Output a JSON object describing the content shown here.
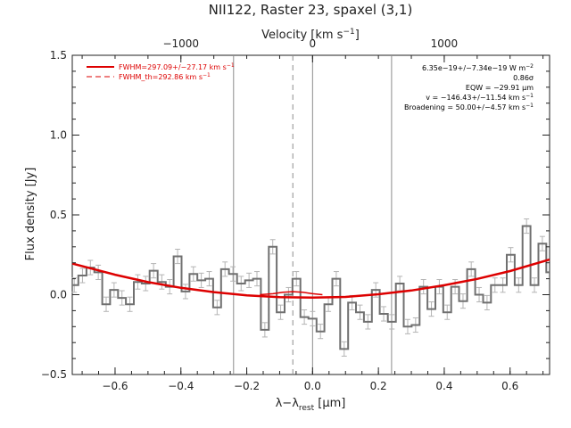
{
  "chart_data": {
    "type": "line",
    "title": "NII122, Raster 23, spaxel (3,1)",
    "xlabel": "λ−λ",
    "xlabel_sub": "rest",
    "xlabel_unit": " [μm]",
    "ylabel": "Flux density [Jy]",
    "top_axis_label": "Velocity [km s",
    "top_axis_label_sup": "−1",
    "top_axis_label_end": "]",
    "xlim": [
      -0.73,
      0.72
    ],
    "ylim": [
      -0.5,
      1.5
    ],
    "x_ticks": [
      -0.6,
      -0.4,
      -0.2,
      0.0,
      0.2,
      0.4,
      0.6
    ],
    "x_tick_labels": [
      "−0.6",
      "−0.4",
      "−0.2",
      "0.0",
      "0.2",
      "0.4",
      "0.6"
    ],
    "y_ticks": [
      -0.5,
      0.0,
      0.5,
      1.0,
      1.5
    ],
    "y_tick_labels": [
      "−0.5",
      "0.0",
      "0.5",
      "1.0",
      "1.5"
    ],
    "top_ticks_x": [
      -0.4,
      0.0,
      0.4
    ],
    "top_tick_labels": [
      "−1000",
      "0",
      "1000"
    ],
    "vertical_lines": [
      {
        "x": -0.24,
        "style": "solid"
      },
      {
        "x": 0.0,
        "style": "solid"
      },
      {
        "x": 0.24,
        "style": "solid"
      },
      {
        "x": -0.06,
        "style": "dashed"
      }
    ],
    "legend": {
      "placement": "top-left",
      "entries": [
        {
          "label": "FWHM=297.09+/−27.17 km s",
          "sup": "−1",
          "style": "solid",
          "color": "#dd0000"
        },
        {
          "label": "FWHM_th=292.86 km s",
          "sup": "−1",
          "style": "dashed",
          "color": "#dd0000"
        }
      ]
    },
    "annotations": [
      {
        "text": "6.35e−19+/−7.34e−19 W m",
        "sup": "−2"
      },
      {
        "text": "0.86σ",
        "sup": ""
      },
      {
        "text": "EQW = −29.91 μm",
        "sup": ""
      },
      {
        "text": "v = −146.43+/−11.54 km s",
        "sup": "−1"
      },
      {
        "text": "Broadening = 50.00+/−4.57 km s",
        "sup": "−1"
      }
    ],
    "series": [
      {
        "kind": "histogram",
        "color": "#707070",
        "x": [
          -0.724,
          -0.699,
          -0.675,
          -0.651,
          -0.627,
          -0.603,
          -0.579,
          -0.555,
          -0.531,
          -0.507,
          -0.483,
          -0.458,
          -0.434,
          -0.41,
          -0.386,
          -0.362,
          -0.338,
          -0.314,
          -0.29,
          -0.266,
          -0.242,
          -0.217,
          -0.193,
          -0.169,
          -0.145,
          -0.121,
          -0.097,
          -0.073,
          -0.049,
          -0.025,
          0.0,
          0.024,
          0.048,
          0.072,
          0.096,
          0.12,
          0.144,
          0.168,
          0.192,
          0.216,
          0.241,
          0.265,
          0.289,
          0.313,
          0.337,
          0.361,
          0.385,
          0.409,
          0.433,
          0.457,
          0.482,
          0.506,
          0.53,
          0.554,
          0.578,
          0.602,
          0.626,
          0.65,
          0.674,
          0.698,
          0.722
        ],
        "y": [
          0.06,
          0.12,
          0.17,
          0.14,
          -0.06,
          0.03,
          -0.02,
          -0.06,
          0.08,
          0.07,
          0.15,
          0.08,
          0.05,
          0.24,
          0.02,
          0.13,
          0.09,
          0.1,
          -0.08,
          0.16,
          0.13,
          0.07,
          0.09,
          0.1,
          -0.22,
          0.3,
          -0.11,
          0.0,
          0.1,
          -0.14,
          -0.15,
          -0.23,
          -0.06,
          0.1,
          -0.34,
          -0.05,
          -0.11,
          -0.17,
          0.03,
          -0.12,
          -0.17,
          0.07,
          -0.2,
          -0.19,
          0.05,
          -0.09,
          0.05,
          -0.11,
          0.05,
          -0.04,
          0.16,
          0.0,
          -0.05,
          0.06,
          0.06,
          0.25,
          0.06,
          0.43,
          0.06,
          0.32,
          0.14
        ],
        "error": 0.045
      },
      {
        "kind": "fit",
        "color": "#dd0000",
        "x": [
          -0.73,
          -0.6,
          -0.5,
          -0.4,
          -0.3,
          -0.2,
          -0.1,
          0.0,
          0.1,
          0.2,
          0.3,
          0.4,
          0.5,
          0.6,
          0.72
        ],
        "y": [
          0.195,
          0.125,
          0.079,
          0.043,
          0.016,
          -0.004,
          -0.015,
          -0.018,
          -0.014,
          0.003,
          0.026,
          0.059,
          0.099,
          0.148,
          0.22
        ]
      },
      {
        "kind": "line-component",
        "color": "#dd0000",
        "x": [
          -0.16,
          -0.12,
          -0.09,
          -0.06,
          -0.03,
          0.0,
          0.03
        ],
        "y": [
          0.0,
          0.006,
          0.015,
          0.019,
          0.015,
          0.006,
          0.0
        ]
      }
    ]
  }
}
